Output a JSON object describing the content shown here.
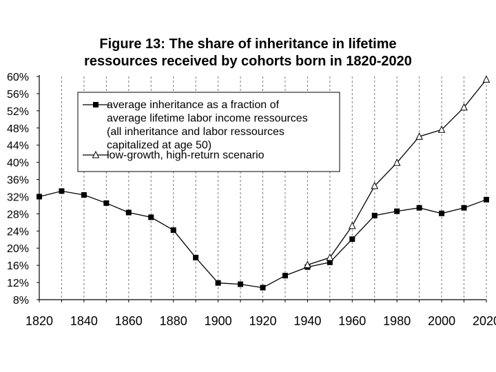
{
  "chart_data": {
    "type": "line",
    "title_line1": "Figure 13: The share of inheritance in lifetime",
    "title_line2": "ressources received by cohorts born in 1820-2020",
    "xlabel": "",
    "ylabel": "",
    "x": [
      1820,
      1830,
      1840,
      1850,
      1860,
      1870,
      1880,
      1890,
      1900,
      1910,
      1920,
      1930,
      1940,
      1950,
      1960,
      1970,
      1980,
      1990,
      2000,
      2010,
      2020
    ],
    "xlim": [
      1820,
      2020
    ],
    "ylim": [
      8,
      60
    ],
    "x_ticks": [
      1820,
      1840,
      1860,
      1880,
      1900,
      1920,
      1940,
      1960,
      1980,
      2000,
      2020
    ],
    "y_ticks": [
      8,
      12,
      16,
      20,
      24,
      28,
      32,
      36,
      40,
      44,
      48,
      52,
      56,
      60
    ],
    "y_tick_labels": [
      "8%",
      "12%",
      "16%",
      "20%",
      "24%",
      "28%",
      "32%",
      "36%",
      "40%",
      "44%",
      "48%",
      "52%",
      "56%",
      "60%"
    ],
    "x_tick_labels": [
      "1820",
      "1840",
      "1860",
      "1880",
      "1900",
      "1920",
      "1940",
      "1960",
      "1980",
      "2000",
      "2020"
    ],
    "grid": "vertical dashed",
    "legend_position": "top-center",
    "series": [
      {
        "name": "average inheritance as a fraction of average lifetime labor income ressources (all inheritance and labor ressources capitalized at age 50)",
        "legend_lines": [
          "average inheritance as a fraction of",
          "average lifetime labor income ressources",
          "(all inheritance and labor ressources",
          "capitalized at age 50)"
        ],
        "marker": "square",
        "x": [
          1820,
          1830,
          1840,
          1850,
          1860,
          1870,
          1880,
          1890,
          1900,
          1910,
          1920,
          1930,
          1940,
          1950,
          1960,
          1970,
          1980,
          1990,
          2000,
          2010,
          2020
        ],
        "values": [
          32.0,
          33.3,
          32.4,
          30.5,
          28.3,
          27.2,
          24.2,
          17.8,
          11.9,
          11.6,
          10.8,
          13.6,
          15.6,
          16.7,
          22.1,
          27.6,
          28.6,
          29.4,
          28.1,
          29.4,
          31.3
        ],
        "color": "#000000"
      },
      {
        "name": "low-growth, high-return scenario",
        "legend_lines": [
          "low-growth, high-return scenario"
        ],
        "marker": "triangle",
        "x": [
          1940,
          1950,
          1960,
          1970,
          1980,
          1990,
          2000,
          2010,
          2020
        ],
        "values": [
          16.1,
          17.8,
          25.2,
          34.5,
          39.9,
          46.0,
          47.6,
          52.8,
          59.3
        ],
        "color": "#000000"
      }
    ]
  }
}
